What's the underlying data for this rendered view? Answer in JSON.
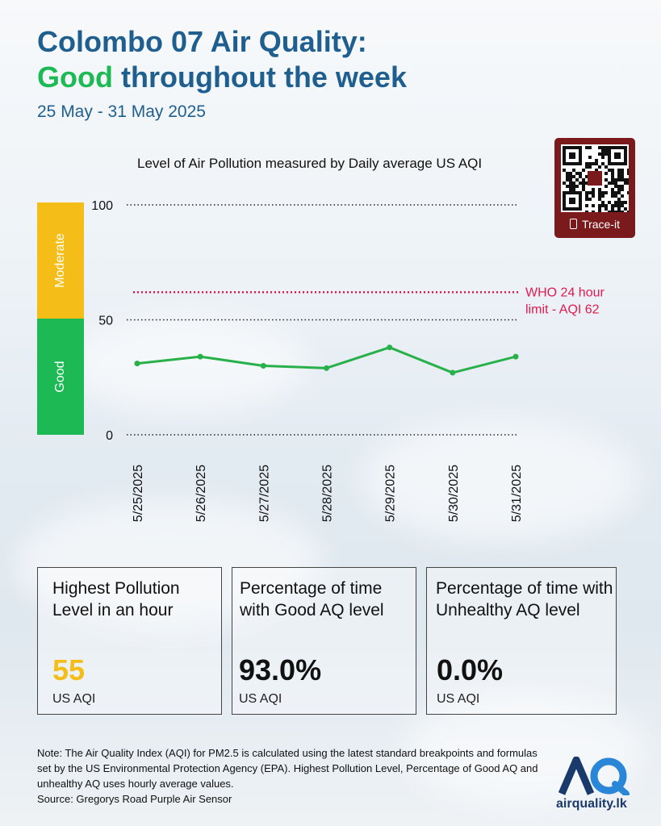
{
  "header": {
    "title_line1": "Colombo 07 Air Quality:",
    "title_good": "Good",
    "title_rest": " throughout the week",
    "date_range": "25 May - 31 May 2025"
  },
  "qr": {
    "label": "Trace-it",
    "icon": "phone-icon"
  },
  "bands": {
    "moderate": {
      "label": "Moderate",
      "color": "#f5bd18"
    },
    "good": {
      "label": "Good",
      "color": "#1db954"
    }
  },
  "chart_data": {
    "type": "line",
    "title": "Level of Air Pollution measured by Daily average US AQI",
    "x": [
      "5/25/2025",
      "5/26/2025",
      "5/27/2025",
      "5/28/2025",
      "5/29/2025",
      "5/30/2025",
      "5/31/2025"
    ],
    "series": [
      {
        "values": [
          31,
          34,
          30,
          29,
          38,
          27,
          34
        ]
      }
    ],
    "ylim": [
      0,
      100
    ],
    "yticks": [
      "0",
      "50",
      "100"
    ],
    "reference_line": {
      "value": 62,
      "label_line1": "WHO 24 hour",
      "label_line2": "limit - AQI 62",
      "color": "#e01a4f"
    },
    "line_color": "#28b04a",
    "grid": "dotted"
  },
  "stats": [
    {
      "heading": "Highest Pollution Level in an hour",
      "value": "55",
      "unit": "US AQI",
      "color": "#f5bd18"
    },
    {
      "heading": "Percentage of time with Good AQ level",
      "value": "93.0%",
      "unit": "US AQI",
      "color": "#111111"
    },
    {
      "heading": "Percentage of time with Unhealthy AQ level",
      "value": "0.0%",
      "unit": "US AQI",
      "color": "#111111"
    }
  ],
  "footer": {
    "note": "Note: The Air Quality Index (AQI) for PM2.5 is calculated using the latest standard breakpoints and formulas set by the US Environmental Protection Agency (EPA). Highest Pollution Level, Percentage of Good AQ and unhealthy AQ uses hourly average values.",
    "source": "Source: Gregorys Road Purple Air Sensor"
  },
  "logo": {
    "mark": "AQ",
    "site": "airquality.lk"
  }
}
